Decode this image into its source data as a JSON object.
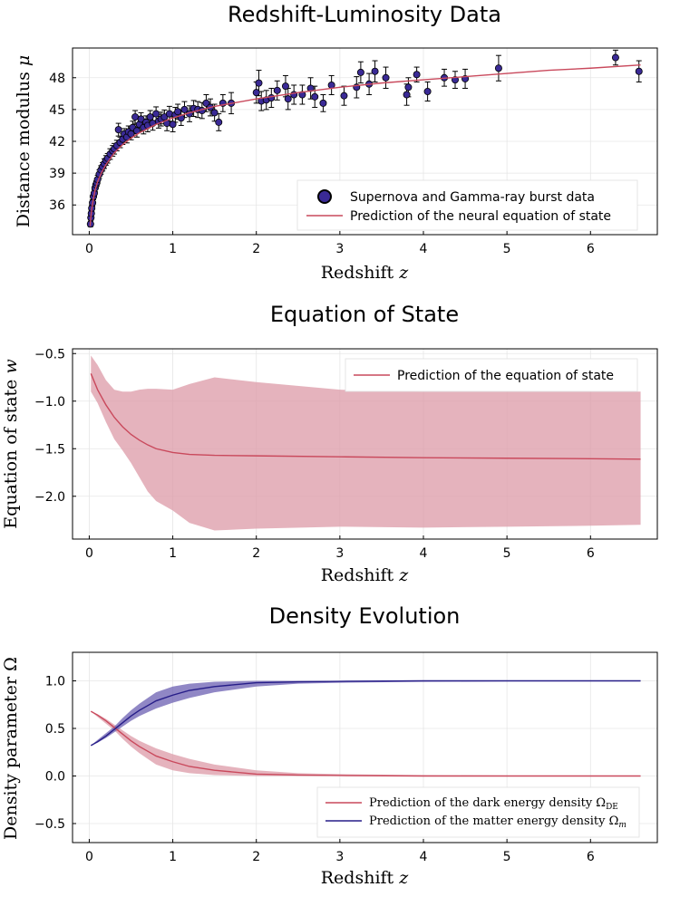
{
  "colors": {
    "curve": "#c9495c",
    "band": "#dc9aa7",
    "matter": "#261d88",
    "matter_band": "#6b5fb1",
    "marker": "#3a2a96",
    "errorbar": "#000000"
  },
  "chart_data": [
    {
      "type": "scatter",
      "title": "Redshift-Luminosity Data",
      "xlabel_text": "Redshift ",
      "xlabel_var": "z",
      "ylabel_text": "Distance modulus ",
      "ylabel_var": "μ",
      "xlim": [
        -0.2,
        6.8
      ],
      "ylim": [
        33.2,
        50.8
      ],
      "xticks": [
        0,
        1,
        2,
        3,
        4,
        5,
        6
      ],
      "yticks": [
        36,
        39,
        42,
        45,
        48
      ],
      "grid": true,
      "legend_position": "bottom-right",
      "legend": [
        "Supernova and Gamma-ray burst data",
        "Prediction of the neural equation of state"
      ],
      "series": [
        {
          "name": "Supernova and Gamma-ray burst data",
          "kind": "points_with_errorbars",
          "points": [
            [
              0.015,
              34.2,
              0.25
            ],
            [
              0.02,
              34.8,
              0.25
            ],
            [
              0.025,
              35.2,
              0.3
            ],
            [
              0.03,
              35.7,
              0.3
            ],
            [
              0.04,
              36.2,
              0.3
            ],
            [
              0.05,
              36.8,
              0.3
            ],
            [
              0.06,
              37.1,
              0.35
            ],
            [
              0.07,
              37.6,
              0.35
            ],
            [
              0.08,
              37.9,
              0.35
            ],
            [
              0.09,
              38.1,
              0.35
            ],
            [
              0.1,
              38.4,
              0.4
            ],
            [
              0.12,
              38.9,
              0.4
            ],
            [
              0.14,
              39.3,
              0.4
            ],
            [
              0.16,
              39.6,
              0.4
            ],
            [
              0.18,
              39.9,
              0.45
            ],
            [
              0.2,
              40.2,
              0.45
            ],
            [
              0.22,
              40.4,
              0.45
            ],
            [
              0.25,
              40.8,
              0.5
            ],
            [
              0.28,
              41.1,
              0.5
            ],
            [
              0.3,
              41.3,
              0.5
            ],
            [
              0.33,
              41.6,
              0.5
            ],
            [
              0.35,
              43.1,
              0.6
            ],
            [
              0.37,
              41.9,
              0.5
            ],
            [
              0.4,
              42.2,
              0.5
            ],
            [
              0.42,
              42.7,
              0.5
            ],
            [
              0.45,
              42.4,
              0.55
            ],
            [
              0.47,
              42.9,
              0.55
            ],
            [
              0.5,
              42.7,
              0.55
            ],
            [
              0.52,
              43.3,
              0.6
            ],
            [
              0.55,
              44.3,
              0.6
            ],
            [
              0.57,
              43.0,
              0.6
            ],
            [
              0.6,
              43.6,
              0.6
            ],
            [
              0.62,
              44.1,
              0.6
            ],
            [
              0.65,
              43.3,
              0.6
            ],
            [
              0.68,
              43.8,
              0.6
            ],
            [
              0.7,
              43.5,
              0.6
            ],
            [
              0.73,
              44.3,
              0.6
            ],
            [
              0.76,
              43.7,
              0.65
            ],
            [
              0.8,
              44.6,
              0.65
            ],
            [
              0.83,
              43.9,
              0.65
            ],
            [
              0.86,
              44.1,
              0.65
            ],
            [
              0.9,
              44.3,
              0.65
            ],
            [
              0.93,
              43.7,
              0.7
            ],
            [
              0.96,
              44.6,
              0.7
            ],
            [
              1.0,
              43.6,
              0.7
            ],
            [
              1.03,
              44.5,
              0.7
            ],
            [
              1.06,
              44.8,
              0.7
            ],
            [
              1.1,
              44.2,
              0.7
            ],
            [
              1.14,
              45.0,
              0.75
            ],
            [
              1.2,
              44.6,
              0.75
            ],
            [
              1.25,
              45.1,
              0.75
            ],
            [
              1.3,
              45.0,
              0.75
            ],
            [
              1.35,
              44.9,
              0.75
            ],
            [
              1.4,
              45.6,
              0.8
            ],
            [
              1.45,
              45.2,
              0.8
            ],
            [
              1.5,
              44.7,
              0.8
            ],
            [
              1.55,
              43.8,
              0.8
            ],
            [
              1.6,
              45.6,
              0.8
            ],
            [
              1.7,
              45.6,
              1.0
            ],
            [
              2.0,
              46.6,
              1.0
            ],
            [
              2.03,
              47.5,
              1.2
            ],
            [
              2.06,
              45.8,
              0.9
            ],
            [
              2.12,
              45.9,
              0.9
            ],
            [
              2.18,
              46.1,
              0.9
            ],
            [
              2.25,
              46.8,
              0.9
            ],
            [
              2.35,
              47.2,
              1.0
            ],
            [
              2.38,
              46.0,
              1.0
            ],
            [
              2.45,
              46.4,
              0.9
            ],
            [
              2.55,
              46.4,
              0.9
            ],
            [
              2.65,
              47.0,
              1.0
            ],
            [
              2.7,
              46.2,
              1.0
            ],
            [
              2.8,
              45.6,
              0.8
            ],
            [
              2.9,
              47.3,
              0.9
            ],
            [
              3.05,
              46.3,
              0.9
            ],
            [
              3.2,
              47.1,
              1.0
            ],
            [
              3.25,
              48.5,
              1.0
            ],
            [
              3.35,
              47.4,
              1.0
            ],
            [
              3.42,
              48.6,
              1.0
            ],
            [
              3.55,
              48.0,
              1.0
            ],
            [
              3.8,
              46.4,
              1.0
            ],
            [
              3.82,
              47.1,
              0.9
            ],
            [
              3.92,
              48.3,
              0.7
            ],
            [
              4.05,
              46.7,
              0.9
            ],
            [
              4.25,
              48.0,
              0.8
            ],
            [
              4.38,
              47.8,
              0.8
            ],
            [
              4.5,
              47.9,
              0.9
            ],
            [
              4.9,
              48.9,
              1.2
            ],
            [
              6.3,
              49.9,
              0.7
            ],
            [
              6.58,
              48.6,
              1.0
            ]
          ]
        },
        {
          "name": "Prediction of the neural equation of state",
          "kind": "line",
          "x": [
            0.01,
            0.02,
            0.03,
            0.05,
            0.07,
            0.1,
            0.15,
            0.2,
            0.3,
            0.4,
            0.5,
            0.6,
            0.8,
            1.0,
            1.2,
            1.5,
            2.0,
            2.5,
            3.0,
            3.5,
            4.0,
            4.5,
            5.0,
            5.5,
            6.0,
            6.6
          ],
          "y": [
            34.0,
            34.9,
            35.6,
            36.6,
            37.4,
            38.2,
            39.1,
            39.8,
            40.9,
            41.7,
            42.3,
            42.8,
            43.6,
            44.2,
            44.7,
            45.3,
            46.0,
            46.6,
            47.1,
            47.5,
            47.8,
            48.1,
            48.4,
            48.7,
            48.9,
            49.2
          ]
        }
      ]
    },
    {
      "type": "line",
      "title": "Equation of State",
      "xlabel_text": "Redshift ",
      "xlabel_var": "z",
      "ylabel_text": "Equation of state ",
      "ylabel_var": "w",
      "xlim": [
        -0.2,
        6.8
      ],
      "ylim": [
        -2.45,
        -0.45
      ],
      "xticks": [
        0,
        1,
        2,
        3,
        4,
        5,
        6
      ],
      "yticks": [
        -2.0,
        -1.5,
        -1.0,
        -0.5
      ],
      "ytick_labels": [
        "−2.0",
        "−1.5",
        "−1.0",
        "−0.5"
      ],
      "grid": true,
      "legend_position": "top-right",
      "legend": [
        "Prediction of the equation of state"
      ],
      "series": [
        {
          "name": "Prediction of the equation of state",
          "x": [
            0.02,
            0.1,
            0.2,
            0.3,
            0.4,
            0.5,
            0.6,
            0.7,
            0.8,
            1.0,
            1.2,
            1.5,
            2.0,
            3.0,
            4.0,
            5.0,
            6.0,
            6.6
          ],
          "y": [
            -0.71,
            -0.88,
            -1.04,
            -1.17,
            -1.27,
            -1.35,
            -1.41,
            -1.46,
            -1.5,
            -1.54,
            -1.56,
            -1.57,
            -1.575,
            -1.585,
            -1.595,
            -1.6,
            -1.605,
            -1.61
          ],
          "band_upper": [
            -0.52,
            -0.62,
            -0.78,
            -0.88,
            -0.9,
            -0.9,
            -0.88,
            -0.87,
            -0.87,
            -0.88,
            -0.82,
            -0.75,
            -0.8,
            -0.88,
            -0.9,
            -0.9,
            -0.9,
            -0.9
          ],
          "band_lower": [
            -0.9,
            -1.02,
            -1.22,
            -1.4,
            -1.52,
            -1.65,
            -1.8,
            -1.95,
            -2.05,
            -2.15,
            -2.28,
            -2.36,
            -2.34,
            -2.32,
            -2.33,
            -2.32,
            -2.31,
            -2.3
          ]
        }
      ]
    },
    {
      "type": "line",
      "title": "Density Evolution",
      "xlabel_text": "Redshift ",
      "xlabel_var": "z",
      "ylabel_text": "Density parameter ",
      "ylabel_var": "Ω",
      "xlim": [
        -0.2,
        6.8
      ],
      "ylim": [
        -0.7,
        1.3
      ],
      "xticks": [
        0,
        1,
        2,
        3,
        4,
        5,
        6
      ],
      "yticks": [
        -0.5,
        0.0,
        0.5,
        1.0
      ],
      "ytick_labels": [
        "−0.5",
        "0.0",
        "0.5",
        "1.0"
      ],
      "grid": true,
      "legend_position": "bottom-right",
      "legend": [
        "Prediction of the dark energy density Ω",
        "Prediction of the matter energy density Ω"
      ],
      "legend_subscripts": [
        "DE",
        "m"
      ],
      "series": [
        {
          "name": "Prediction of the dark energy density Ω",
          "x": [
            0.02,
            0.1,
            0.2,
            0.3,
            0.4,
            0.5,
            0.6,
            0.7,
            0.8,
            1.0,
            1.2,
            1.5,
            2.0,
            2.5,
            3.0,
            4.0,
            5.0,
            6.0,
            6.6
          ],
          "y": [
            0.68,
            0.64,
            0.58,
            0.51,
            0.44,
            0.37,
            0.31,
            0.26,
            0.21,
            0.15,
            0.1,
            0.06,
            0.02,
            0.01,
            0.005,
            0.0,
            0.0,
            0.0,
            0.0
          ],
          "band_upper": [
            0.68,
            0.65,
            0.6,
            0.54,
            0.48,
            0.42,
            0.37,
            0.33,
            0.29,
            0.23,
            0.18,
            0.12,
            0.06,
            0.03,
            0.02,
            0.01,
            0.005,
            0.0,
            0.0
          ],
          "band_lower": [
            0.68,
            0.62,
            0.55,
            0.48,
            0.39,
            0.31,
            0.24,
            0.18,
            0.12,
            0.06,
            0.03,
            0.01,
            0.0,
            0.0,
            0.0,
            0.0,
            0.0,
            0.0,
            0.0
          ]
        },
        {
          "name": "Prediction of the matter energy density Ω",
          "x": [
            0.02,
            0.1,
            0.2,
            0.3,
            0.4,
            0.5,
            0.6,
            0.7,
            0.8,
            1.0,
            1.2,
            1.5,
            2.0,
            2.5,
            3.0,
            4.0,
            5.0,
            6.0,
            6.6
          ],
          "y": [
            0.32,
            0.36,
            0.42,
            0.49,
            0.56,
            0.63,
            0.69,
            0.74,
            0.79,
            0.85,
            0.9,
            0.94,
            0.98,
            0.99,
            0.995,
            1.0,
            1.0,
            1.0,
            1.0
          ],
          "band_upper": [
            0.32,
            0.38,
            0.45,
            0.52,
            0.61,
            0.69,
            0.76,
            0.82,
            0.88,
            0.94,
            0.97,
            0.99,
            1.0,
            1.0,
            1.0,
            1.0,
            1.0,
            1.0,
            1.0
          ],
          "band_lower": [
            0.32,
            0.35,
            0.4,
            0.46,
            0.52,
            0.58,
            0.63,
            0.67,
            0.71,
            0.77,
            0.82,
            0.88,
            0.94,
            0.97,
            0.98,
            0.99,
            0.995,
            1.0,
            1.0
          ]
        }
      ]
    }
  ]
}
